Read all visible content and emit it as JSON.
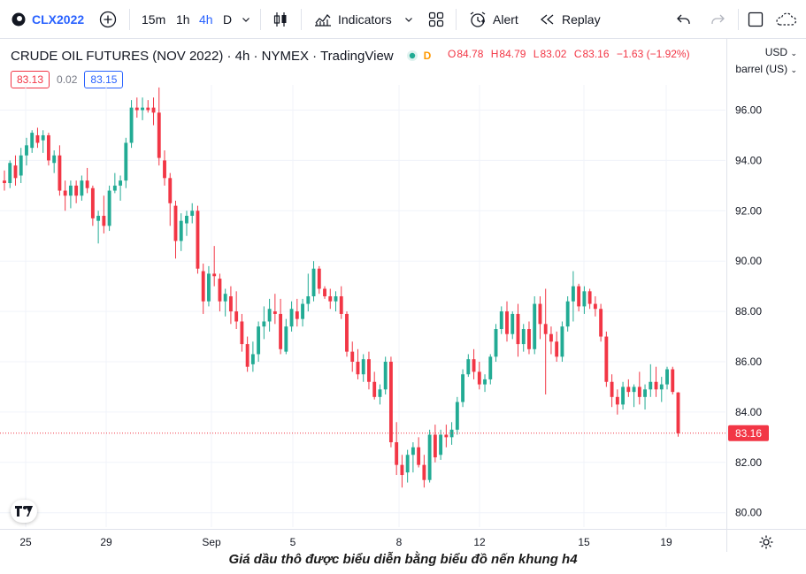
{
  "toolbar": {
    "symbol": "CLX2022",
    "add_icon": "plus-circle-icon",
    "intervals": [
      "15m",
      "1h",
      "4h",
      "D"
    ],
    "active_interval": "4h",
    "indicators_label": "Indicators",
    "alert_label": "Alert",
    "replay_label": "Replay"
  },
  "legend": {
    "title": "CRUDE OIL FUTURES (NOV 2022) · 4h · NYMEX · TradingView",
    "market_status": "D",
    "open_label": "O",
    "open": "84.78",
    "high_label": "H",
    "high": "84.79",
    "low_label": "L",
    "low": "83.02",
    "close_label": "C",
    "close": "83.16",
    "change": "−1.63 (−1.92%)"
  },
  "quote": {
    "bid": "83.13",
    "spread": "0.02",
    "ask": "83.15"
  },
  "scale": {
    "currency": "USD",
    "unit": "barrel (US)"
  },
  "colors": {
    "up": "#22ab94",
    "down": "#f23645",
    "accent": "#2962ff"
  },
  "caption": "Giá dầu thô được biểu diễn bằng biểu đồ nến khung h4",
  "chart_data": {
    "type": "candlestick",
    "title": "CRUDE OIL FUTURES (NOV 2022)",
    "x_tick_labels": [
      "25",
      "29",
      "Sep",
      "5",
      "8",
      "12",
      "15",
      "19"
    ],
    "y_ticks": [
      80,
      82,
      84,
      86,
      88,
      90,
      92,
      94,
      96
    ],
    "y_tick_labels": [
      "80.00",
      "82.00",
      "84.00",
      "86.00",
      "88.00",
      "90.00",
      "92.00",
      "94.00",
      "96.00"
    ],
    "ylim": [
      79.3,
      97.7
    ],
    "last_price": 83.16,
    "last_price_label": "83.16",
    "candles": [
      [
        93.2,
        93.6,
        92.8,
        93.1
      ],
      [
        93.1,
        94.0,
        92.9,
        93.9
      ],
      [
        93.8,
        94.2,
        93.0,
        93.3
      ],
      [
        93.4,
        94.5,
        93.1,
        94.2
      ],
      [
        94.2,
        94.9,
        93.8,
        94.6
      ],
      [
        94.5,
        95.2,
        94.3,
        95.1
      ],
      [
        95.0,
        95.3,
        94.5,
        94.7
      ],
      [
        94.8,
        95.2,
        94.3,
        95.0
      ],
      [
        95.0,
        95.1,
        93.8,
        94.0
      ],
      [
        93.9,
        94.4,
        93.5,
        94.2
      ],
      [
        94.2,
        94.6,
        92.6,
        92.8
      ],
      [
        92.8,
        93.2,
        92.0,
        92.6
      ],
      [
        92.6,
        93.2,
        92.1,
        93.0
      ],
      [
        93.0,
        93.2,
        92.3,
        92.6
      ],
      [
        92.6,
        93.4,
        92.4,
        93.2
      ],
      [
        93.2,
        93.7,
        92.7,
        92.9
      ],
      [
        92.9,
        93.0,
        91.4,
        91.7
      ],
      [
        91.6,
        92.0,
        90.7,
        91.8
      ],
      [
        91.8,
        92.6,
        91.1,
        91.4
      ],
      [
        91.4,
        93.0,
        91.2,
        92.8
      ],
      [
        92.8,
        93.5,
        92.7,
        93.0
      ],
      [
        93.0,
        93.4,
        92.4,
        93.2
      ],
      [
        93.2,
        94.9,
        92.9,
        94.7
      ],
      [
        94.7,
        96.4,
        94.5,
        96.1
      ],
      [
        96.1,
        96.5,
        95.7,
        96.0
      ],
      [
        96.0,
        96.5,
        95.6,
        96.1
      ],
      [
        96.1,
        96.4,
        95.9,
        96.0
      ],
      [
        96.1,
        96.5,
        95.4,
        95.9
      ],
      [
        95.9,
        96.9,
        93.8,
        94.1
      ],
      [
        94.0,
        94.4,
        93.0,
        93.3
      ],
      [
        93.3,
        93.5,
        91.4,
        92.3
      ],
      [
        92.2,
        92.4,
        90.1,
        90.8
      ],
      [
        90.8,
        91.9,
        90.4,
        91.6
      ],
      [
        91.5,
        92.0,
        91.0,
        91.8
      ],
      [
        91.8,
        92.3,
        91.5,
        92.0
      ],
      [
        92.0,
        92.2,
        89.5,
        89.7
      ],
      [
        89.6,
        89.9,
        87.9,
        88.4
      ],
      [
        88.4,
        89.8,
        88.2,
        89.5
      ],
      [
        89.5,
        90.6,
        89.0,
        89.4
      ],
      [
        89.3,
        89.5,
        88.0,
        88.4
      ],
      [
        88.4,
        88.9,
        87.8,
        88.7
      ],
      [
        88.6,
        89.0,
        87.5,
        88.0
      ],
      [
        88.0,
        88.8,
        87.3,
        87.6
      ],
      [
        87.6,
        87.9,
        86.4,
        86.7
      ],
      [
        86.7,
        87.0,
        85.6,
        85.8
      ],
      [
        85.9,
        86.8,
        85.6,
        86.3
      ],
      [
        86.3,
        87.6,
        86.0,
        87.4
      ],
      [
        87.4,
        88.2,
        86.9,
        87.6
      ],
      [
        87.6,
        88.5,
        87.2,
        88.1
      ],
      [
        88.0,
        88.7,
        87.5,
        87.9
      ],
      [
        87.9,
        88.5,
        86.3,
        86.5
      ],
      [
        86.4,
        87.7,
        86.3,
        87.4
      ],
      [
        87.4,
        88.4,
        87.2,
        88.1
      ],
      [
        88.0,
        88.5,
        87.4,
        87.7
      ],
      [
        87.7,
        88.5,
        87.4,
        88.3
      ],
      [
        88.3,
        89.5,
        88.0,
        88.6
      ],
      [
        88.6,
        90.0,
        88.4,
        89.7
      ],
      [
        89.7,
        89.8,
        88.7,
        88.9
      ],
      [
        88.9,
        89.0,
        88.5,
        88.6
      ],
      [
        88.6,
        88.9,
        88.1,
        88.4
      ],
      [
        88.4,
        88.8,
        88.0,
        88.6
      ],
      [
        88.6,
        89.0,
        87.7,
        87.9
      ],
      [
        87.9,
        88.0,
        86.2,
        86.4
      ],
      [
        86.4,
        86.8,
        85.6,
        86.0
      ],
      [
        86.0,
        86.5,
        85.3,
        85.5
      ],
      [
        85.5,
        86.3,
        85.2,
        86.1
      ],
      [
        86.1,
        86.4,
        84.9,
        85.2
      ],
      [
        85.2,
        85.6,
        84.5,
        84.6
      ],
      [
        84.6,
        85.1,
        84.3,
        84.9
      ],
      [
        84.9,
        86.2,
        84.7,
        86.0
      ],
      [
        86.0,
        86.2,
        82.6,
        82.8
      ],
      [
        82.8,
        83.6,
        81.5,
        81.9
      ],
      [
        81.9,
        82.3,
        81.0,
        81.5
      ],
      [
        81.6,
        82.5,
        81.2,
        82.3
      ],
      [
        82.3,
        82.8,
        81.6,
        82.6
      ],
      [
        82.6,
        83.0,
        81.8,
        81.9
      ],
      [
        81.9,
        82.3,
        81.0,
        81.3
      ],
      [
        81.3,
        83.3,
        81.2,
        83.1
      ],
      [
        83.1,
        83.5,
        82.0,
        82.2
      ],
      [
        82.3,
        83.3,
        82.1,
        83.1
      ],
      [
        83.1,
        83.5,
        82.6,
        83.0
      ],
      [
        83.0,
        83.6,
        82.7,
        83.3
      ],
      [
        83.3,
        84.6,
        83.1,
        84.4
      ],
      [
        84.4,
        85.7,
        84.2,
        85.5
      ],
      [
        85.5,
        86.3,
        85.4,
        86.1
      ],
      [
        86.1,
        86.5,
        85.3,
        85.6
      ],
      [
        85.6,
        86.0,
        84.9,
        85.1
      ],
      [
        85.1,
        85.5,
        84.8,
        85.3
      ],
      [
        85.3,
        86.3,
        85.1,
        86.2
      ],
      [
        86.2,
        87.5,
        86.0,
        87.3
      ],
      [
        87.3,
        88.2,
        87.1,
        88.0
      ],
      [
        88.0,
        88.4,
        86.8,
        87.1
      ],
      [
        87.1,
        88.0,
        86.9,
        87.9
      ],
      [
        87.9,
        88.3,
        86.2,
        86.7
      ],
      [
        86.7,
        87.5,
        86.4,
        87.3
      ],
      [
        87.3,
        87.6,
        86.3,
        86.5
      ],
      [
        86.5,
        88.6,
        86.3,
        88.3
      ],
      [
        88.3,
        88.6,
        86.9,
        87.5
      ],
      [
        87.5,
        88.9,
        84.7,
        87.1
      ],
      [
        87.1,
        87.4,
        86.3,
        86.8
      ],
      [
        86.8,
        87.2,
        86.0,
        86.2
      ],
      [
        86.2,
        87.6,
        86.0,
        87.4
      ],
      [
        87.4,
        88.6,
        87.2,
        88.4
      ],
      [
        88.4,
        89.6,
        87.6,
        89.0
      ],
      [
        89.0,
        89.1,
        88.0,
        88.2
      ],
      [
        88.2,
        89.0,
        87.9,
        88.8
      ],
      [
        88.8,
        88.9,
        88.1,
        88.3
      ],
      [
        88.3,
        88.6,
        87.8,
        88.1
      ],
      [
        88.1,
        88.3,
        86.8,
        87.0
      ],
      [
        87.0,
        87.2,
        85.0,
        85.2
      ],
      [
        85.2,
        85.5,
        84.2,
        84.6
      ],
      [
        84.6,
        84.9,
        83.9,
        84.3
      ],
      [
        84.3,
        85.2,
        84.1,
        85.0
      ],
      [
        85.0,
        85.3,
        84.6,
        84.8
      ],
      [
        84.8,
        85.1,
        84.2,
        85.0
      ],
      [
        85.0,
        85.6,
        84.3,
        84.6
      ],
      [
        84.6,
        85.1,
        84.1,
        84.9
      ],
      [
        84.9,
        85.9,
        84.6,
        85.2
      ],
      [
        85.2,
        85.8,
        84.6,
        84.9
      ],
      [
        84.9,
        85.4,
        84.4,
        85.1
      ],
      [
        85.1,
        85.8,
        84.9,
        85.7
      ],
      [
        85.7,
        85.8,
        84.7,
        84.8
      ],
      [
        84.78,
        84.79,
        83.02,
        83.16
      ]
    ]
  }
}
